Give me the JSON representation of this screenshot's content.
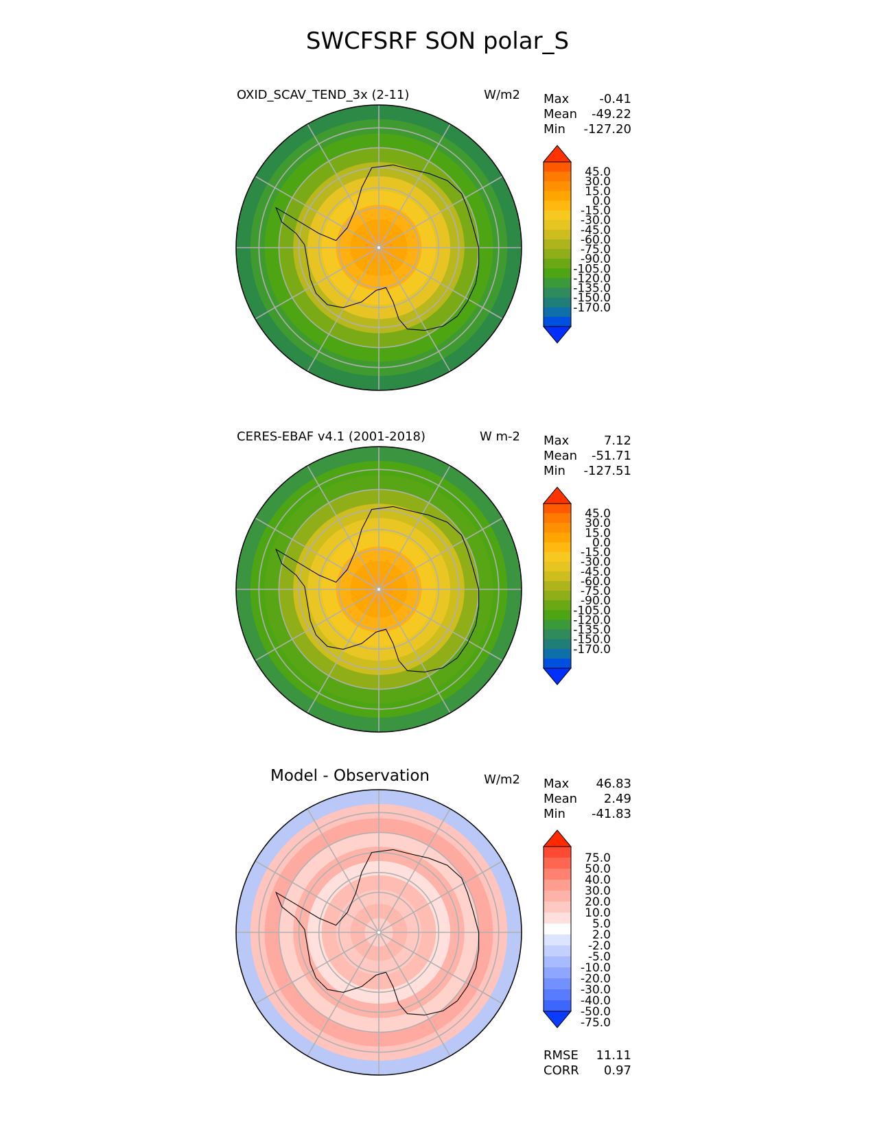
{
  "title": "SWCFSRF SON polar_S",
  "panels": [
    {
      "id": "test",
      "title": "OXID_SCAV_TEND_3x (2-11)",
      "title_style": "left",
      "units": "W/m2",
      "stats": [
        {
          "label": "Max",
          "value": "-0.41"
        },
        {
          "label": "Mean",
          "value": "-49.22"
        },
        {
          "label": "Min",
          "value": "-127.20"
        }
      ],
      "colorbar": {
        "levels": [
          "45.0",
          "30.0",
          "15.0",
          "0.0",
          "-15.0",
          "-30.0",
          "-45.0",
          "-60.0",
          "-75.0",
          "-90.0",
          "-105.0",
          "-120.0",
          "-135.0",
          "-150.0",
          "-170.0"
        ],
        "colors": [
          "#ff3300",
          "#ff5a00",
          "#ff7a00",
          "#ff9100",
          "#ffa500",
          "#ffb810",
          "#f6c820",
          "#e6c422",
          "#cdbe1e",
          "#b0b41c",
          "#8fae18",
          "#6aa814",
          "#4ea514",
          "#3a9a3a",
          "#2f8a5c",
          "#207e78",
          "#0f6fa8",
          "#0050e0",
          "#0030ff"
        ],
        "rings": [
          "#2d8a46",
          "#3f9a30",
          "#4ea514",
          "#7aab17",
          "#b8b81e",
          "#e7c423",
          "#f6c822",
          "#ffb010",
          "#ffa500",
          "#ffa010"
        ]
      }
    },
    {
      "id": "obs",
      "title": "CERES-EBAF v4.1 (2001-2018)",
      "title_style": "left",
      "units": "W m-2",
      "stats": [
        {
          "label": "Max",
          "value": "7.12"
        },
        {
          "label": "Mean",
          "value": "-51.71"
        },
        {
          "label": "Min",
          "value": "-127.51"
        }
      ],
      "colorbar": {
        "levels": [
          "45.0",
          "30.0",
          "15.0",
          "0.0",
          "-15.0",
          "-30.0",
          "-45.0",
          "-60.0",
          "-75.0",
          "-90.0",
          "-105.0",
          "-120.0",
          "-135.0",
          "-150.0",
          "-170.0"
        ],
        "colors": [
          "#ff3300",
          "#ff5a00",
          "#ff7a00",
          "#ff9100",
          "#ffa500",
          "#ffb810",
          "#f6c820",
          "#e6c422",
          "#cdbe1e",
          "#b0b41c",
          "#8fae18",
          "#6aa814",
          "#4ea514",
          "#3a9a3a",
          "#2f8a5c",
          "#207e78",
          "#0f6fa8",
          "#0050e0",
          "#0030ff"
        ],
        "rings": [
          "#3a9440",
          "#4ea514",
          "#58a616",
          "#8fae18",
          "#cdbe1e",
          "#e9c623",
          "#f6c822",
          "#ffb010",
          "#ffa500",
          "#ffa010"
        ]
      }
    },
    {
      "id": "diff",
      "title": "Model - Observation",
      "title_style": "center",
      "units": "W/m2",
      "stats": [
        {
          "label": "Max",
          "value": "46.83"
        },
        {
          "label": "Mean",
          "value": "2.49"
        },
        {
          "label": "Min",
          "value": "-41.83"
        }
      ],
      "colorbar": {
        "levels": [
          "75.0",
          "50.0",
          "40.0",
          "30.0",
          "20.0",
          "10.0",
          "5.0",
          "2.0",
          "-2.0",
          "-5.0",
          "-10.0",
          "-20.0",
          "-30.0",
          "-40.0",
          "-50.0",
          "-75.0"
        ],
        "colors": [
          "#ff2a00",
          "#ff4a33",
          "#ff6650",
          "#ff8270",
          "#ff9d8e",
          "#ffb3a8",
          "#ffc9c2",
          "#ffe0dc",
          "#ffffff",
          "#dde4ff",
          "#c4d0ff",
          "#a9bbff",
          "#8ea6ff",
          "#7390ff",
          "#587bff",
          "#3d66ff",
          "#0a3cff"
        ],
        "rings": [
          "#b9c8f6",
          "#ffc4bd",
          "#ffaaa0",
          "#ffd2cc",
          "#ffb3a8",
          "#ffe0dc",
          "#ffbcb2",
          "#ffc9c2",
          "#ffb8ae",
          "#ffd0c9"
        ]
      }
    }
  ],
  "summary": [
    {
      "label": "RMSE",
      "value": "11.11"
    },
    {
      "label": "CORR",
      "value": "0.97"
    }
  ]
}
